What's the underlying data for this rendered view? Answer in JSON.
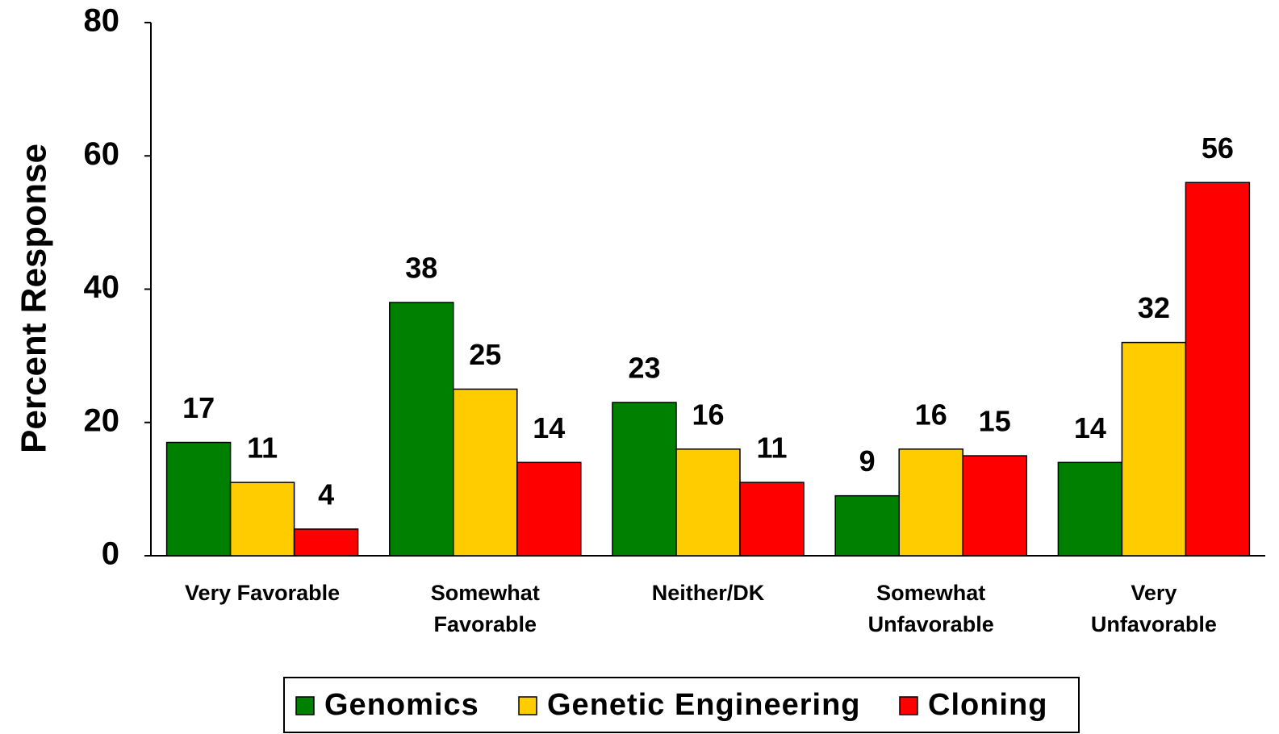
{
  "chart_data": {
    "type": "bar",
    "y_label": "Percent Response",
    "categories": [
      [
        "Very Favorable"
      ],
      [
        "Somewhat",
        "Favorable"
      ],
      [
        "Neither/DK"
      ],
      [
        "Somewhat",
        "Unfavorable"
      ],
      [
        "Very",
        "Unfavorable"
      ]
    ],
    "series": [
      {
        "name": "Genomics",
        "color": "#008000",
        "values": [
          17,
          38,
          23,
          9,
          14
        ]
      },
      {
        "name": "Genetic Engineering",
        "color": "#ffcc00",
        "values": [
          11,
          25,
          16,
          16,
          32
        ]
      },
      {
        "name": "Cloning",
        "color": "#ff0000",
        "values": [
          4,
          14,
          11,
          15,
          56
        ]
      }
    ],
    "ylim": [
      0,
      80
    ],
    "yticks": [
      0,
      20,
      40,
      60,
      80
    ],
    "grid": false,
    "legend": "bottom"
  }
}
